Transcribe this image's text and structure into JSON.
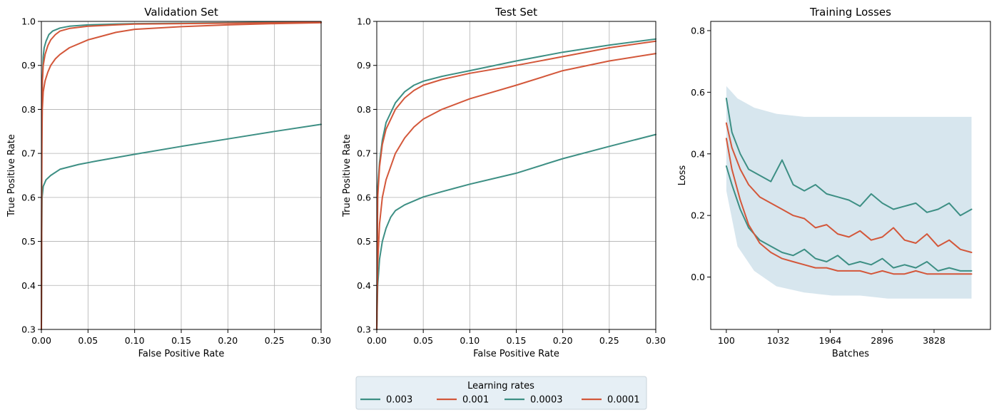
{
  "colors": {
    "teal": "#3d8f84",
    "orange": "#d3573a",
    "band": "#c9dde8",
    "legend_bg": "#e6eff5"
  },
  "legend": {
    "title": "Learning rates",
    "entries": [
      {
        "label": "0.003",
        "color": "#3d8f84"
      },
      {
        "label": "0.001",
        "color": "#d3573a"
      },
      {
        "label": "0.0003",
        "color": "#3d8f84"
      },
      {
        "label": "0.0001",
        "color": "#d3573a"
      }
    ]
  },
  "chart_data": [
    {
      "type": "line",
      "title": "Validation Set",
      "xlabel": "False Positive Rate",
      "ylabel": "True Positive Rate",
      "xlim": [
        0,
        0.3
      ],
      "ylim": [
        0.3,
        1.0
      ],
      "xticks": [
        0.0,
        0.05,
        0.1,
        0.15,
        0.2,
        0.25,
        0.3
      ],
      "xtick_labels": [
        "0.00",
        "0.05",
        "0.10",
        "0.15",
        "0.20",
        "0.25",
        "0.30"
      ],
      "yticks": [
        0.3,
        0.4,
        0.5,
        0.6,
        0.7,
        0.8,
        0.9,
        1.0
      ],
      "ytick_labels": [
        "0.3",
        "0.4",
        "0.5",
        "0.6",
        "0.7",
        "0.8",
        "0.9",
        "1.0"
      ],
      "grid": true,
      "series": [
        {
          "color": "#3d8f84",
          "x": [
            0,
            0.0005,
            0.001,
            0.002,
            0.003,
            0.005,
            0.008,
            0.012,
            0.02,
            0.03,
            0.05,
            0.08,
            0.1,
            0.15,
            0.2,
            0.25,
            0.3
          ],
          "y": [
            0.3,
            0.78,
            0.86,
            0.92,
            0.94,
            0.955,
            0.97,
            0.978,
            0.985,
            0.989,
            0.992,
            0.994,
            0.995,
            0.996,
            0.997,
            0.998,
            0.999
          ]
        },
        {
          "color": "#d3573a",
          "x": [
            0,
            0.0005,
            0.001,
            0.002,
            0.004,
            0.007,
            0.01,
            0.015,
            0.02,
            0.03,
            0.05,
            0.08,
            0.1,
            0.15,
            0.2,
            0.25,
            0.3
          ],
          "y": [
            0.3,
            0.8,
            0.86,
            0.9,
            0.925,
            0.945,
            0.958,
            0.97,
            0.978,
            0.984,
            0.989,
            0.992,
            0.994,
            0.995,
            0.996,
            0.997,
            0.998
          ]
        },
        {
          "color": "#3d8f84",
          "x": [
            0,
            0.0003,
            0.0008,
            0.002,
            0.005,
            0.01,
            0.02,
            0.04,
            0.06,
            0.1,
            0.15,
            0.2,
            0.25,
            0.3
          ],
          "y": [
            0.3,
            0.5,
            0.6,
            0.625,
            0.64,
            0.65,
            0.664,
            0.675,
            0.683,
            0.698,
            0.716,
            0.733,
            0.75,
            0.766
          ]
        },
        {
          "color": "#d3573a",
          "x": [
            0,
            0.0005,
            0.001,
            0.002,
            0.004,
            0.007,
            0.01,
            0.015,
            0.02,
            0.03,
            0.05,
            0.08,
            0.1,
            0.15,
            0.2,
            0.25,
            0.3
          ],
          "y": [
            0.3,
            0.72,
            0.8,
            0.84,
            0.865,
            0.885,
            0.9,
            0.915,
            0.925,
            0.94,
            0.958,
            0.975,
            0.982,
            0.988,
            0.992,
            0.995,
            0.997
          ]
        }
      ]
    },
    {
      "type": "line",
      "title": "Test Set",
      "xlabel": "False Positive Rate",
      "ylabel": "True Positive Rate",
      "xlim": [
        0,
        0.3
      ],
      "ylim": [
        0.3,
        1.0
      ],
      "xticks": [
        0.0,
        0.05,
        0.1,
        0.15,
        0.2,
        0.25,
        0.3
      ],
      "xtick_labels": [
        "0.00",
        "0.05",
        "0.10",
        "0.15",
        "0.20",
        "0.25",
        "0.30"
      ],
      "yticks": [
        0.3,
        0.4,
        0.5,
        0.6,
        0.7,
        0.8,
        0.9,
        1.0
      ],
      "ytick_labels": [
        "0.3",
        "0.4",
        "0.5",
        "0.6",
        "0.7",
        "0.8",
        "0.9",
        "1.0"
      ],
      "grid": true,
      "series": [
        {
          "color": "#3d8f84",
          "x": [
            0,
            0.001,
            0.003,
            0.006,
            0.01,
            0.02,
            0.03,
            0.04,
            0.05,
            0.07,
            0.1,
            0.15,
            0.2,
            0.25,
            0.3
          ],
          "y": [
            0.3,
            0.62,
            0.68,
            0.73,
            0.77,
            0.815,
            0.84,
            0.855,
            0.864,
            0.875,
            0.888,
            0.91,
            0.93,
            0.946,
            0.96
          ]
        },
        {
          "color": "#d3573a",
          "x": [
            0,
            0.001,
            0.003,
            0.006,
            0.01,
            0.02,
            0.03,
            0.04,
            0.05,
            0.07,
            0.1,
            0.15,
            0.2,
            0.25,
            0.3
          ],
          "y": [
            0.3,
            0.6,
            0.67,
            0.72,
            0.755,
            0.8,
            0.826,
            0.843,
            0.855,
            0.868,
            0.882,
            0.9,
            0.92,
            0.94,
            0.955
          ]
        },
        {
          "color": "#3d8f84",
          "x": [
            0,
            0.001,
            0.003,
            0.006,
            0.01,
            0.015,
            0.02,
            0.03,
            0.05,
            0.07,
            0.1,
            0.15,
            0.2,
            0.25,
            0.3
          ],
          "y": [
            0.3,
            0.4,
            0.46,
            0.5,
            0.53,
            0.555,
            0.57,
            0.583,
            0.601,
            0.613,
            0.63,
            0.655,
            0.688,
            0.716,
            0.743
          ]
        },
        {
          "color": "#d3573a",
          "x": [
            0,
            0.001,
            0.003,
            0.006,
            0.01,
            0.02,
            0.03,
            0.04,
            0.05,
            0.07,
            0.1,
            0.15,
            0.2,
            0.25,
            0.3
          ],
          "y": [
            0.3,
            0.45,
            0.54,
            0.6,
            0.64,
            0.7,
            0.735,
            0.76,
            0.778,
            0.8,
            0.824,
            0.855,
            0.888,
            0.91,
            0.927
          ]
        }
      ]
    },
    {
      "type": "line",
      "title": "Training Losses",
      "xlabel": "Batches",
      "ylabel": "Loss",
      "xlim": [
        -180,
        4840
      ],
      "ylim": [
        -0.17,
        0.83
      ],
      "xticks": [
        100,
        1032,
        1964,
        2896,
        3828
      ],
      "xtick_labels": [
        "100",
        "1032",
        "1964",
        "2896",
        "3828"
      ],
      "yticks": [
        0.0,
        0.2,
        0.4,
        0.6,
        0.8
      ],
      "ytick_labels": [
        "0.0",
        "0.2",
        "0.4",
        "0.6",
        "0.8"
      ],
      "grid": false,
      "band": {
        "x": [
          100,
          300,
          600,
          1000,
          1500,
          2000,
          2500,
          3000,
          3500,
          4000,
          4500
        ],
        "upper": [
          0.62,
          0.58,
          0.55,
          0.53,
          0.52,
          0.52,
          0.52,
          0.52,
          0.52,
          0.52,
          0.52
        ],
        "lower": [
          0.28,
          0.1,
          0.02,
          -0.03,
          -0.05,
          -0.06,
          -0.06,
          -0.07,
          -0.07,
          -0.07,
          -0.07
        ]
      },
      "series": [
        {
          "color": "#3d8f84",
          "x": [
            100,
            200,
            350,
            500,
            700,
            900,
            1100,
            1300,
            1500,
            1700,
            1900,
            2100,
            2300,
            2500,
            2700,
            2900,
            3100,
            3300,
            3500,
            3700,
            3900,
            4100,
            4300,
            4500
          ],
          "y": [
            0.58,
            0.47,
            0.4,
            0.35,
            0.33,
            0.31,
            0.38,
            0.3,
            0.28,
            0.3,
            0.27,
            0.26,
            0.25,
            0.23,
            0.27,
            0.24,
            0.22,
            0.23,
            0.24,
            0.21,
            0.22,
            0.24,
            0.2,
            0.22
          ]
        },
        {
          "color": "#d3573a",
          "x": [
            100,
            200,
            350,
            500,
            700,
            900,
            1100,
            1300,
            1500,
            1700,
            1900,
            2100,
            2300,
            2500,
            2700,
            2900,
            3100,
            3300,
            3500,
            3700,
            3900,
            4100,
            4300,
            4500
          ],
          "y": [
            0.5,
            0.42,
            0.35,
            0.3,
            0.26,
            0.24,
            0.22,
            0.2,
            0.19,
            0.16,
            0.17,
            0.14,
            0.13,
            0.15,
            0.12,
            0.13,
            0.16,
            0.12,
            0.11,
            0.14,
            0.1,
            0.12,
            0.09,
            0.08
          ]
        },
        {
          "color": "#3d8f84",
          "x": [
            100,
            200,
            350,
            500,
            700,
            900,
            1100,
            1300,
            1500,
            1700,
            1900,
            2100,
            2300,
            2500,
            2700,
            2900,
            3100,
            3300,
            3500,
            3700,
            3900,
            4100,
            4300,
            4500
          ],
          "y": [
            0.36,
            0.3,
            0.22,
            0.16,
            0.12,
            0.1,
            0.08,
            0.07,
            0.09,
            0.06,
            0.05,
            0.07,
            0.04,
            0.05,
            0.04,
            0.06,
            0.03,
            0.04,
            0.03,
            0.05,
            0.02,
            0.03,
            0.02,
            0.02
          ]
        },
        {
          "color": "#d3573a",
          "x": [
            100,
            200,
            350,
            500,
            700,
            900,
            1100,
            1300,
            1500,
            1700,
            1900,
            2100,
            2300,
            2500,
            2700,
            2900,
            3100,
            3300,
            3500,
            3700,
            3900,
            4100,
            4300,
            4500
          ],
          "y": [
            0.45,
            0.35,
            0.25,
            0.17,
            0.11,
            0.08,
            0.06,
            0.05,
            0.04,
            0.03,
            0.03,
            0.02,
            0.02,
            0.02,
            0.01,
            0.02,
            0.01,
            0.01,
            0.02,
            0.01,
            0.01,
            0.01,
            0.01,
            0.01
          ]
        }
      ]
    }
  ]
}
